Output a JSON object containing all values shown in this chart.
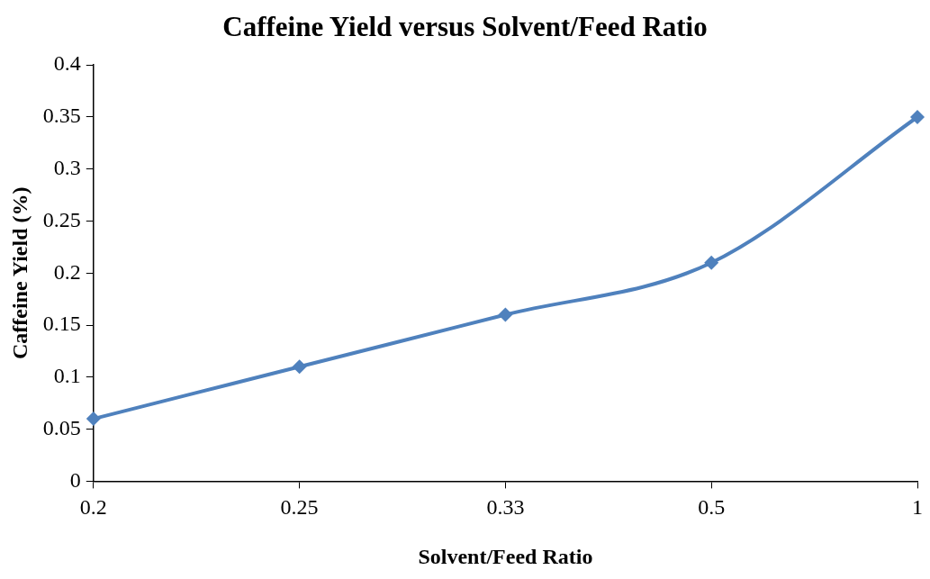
{
  "chart_data": {
    "type": "line",
    "title": "Caffeine Yield versus Solvent/Feed Ratio",
    "xlabel": "Solvent/Feed Ratio",
    "ylabel": "Caffeine Yield (%)",
    "categories": [
      "0.2",
      "0.25",
      "0.33",
      "0.5",
      "1"
    ],
    "series": [
      {
        "color": "#4f81bd",
        "values": [
          0.06,
          0.11,
          0.16,
          0.21,
          0.35
        ]
      }
    ],
    "ylim": [
      0,
      0.4
    ],
    "yticks": [
      0,
      0.05,
      0.1,
      0.15,
      0.2,
      0.25,
      0.3,
      0.35,
      0.4
    ],
    "grid": false,
    "legend": false,
    "marker": "diamond",
    "line_style": "solid"
  }
}
